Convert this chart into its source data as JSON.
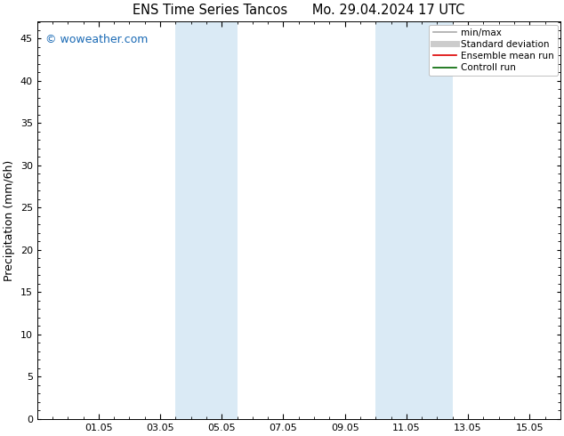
{
  "title": "ENS Time Series Tancos      Mo. 29.04.2024 17 UTC",
  "ylabel": "Precipitation (mm/6h)",
  "ylim": [
    0,
    47
  ],
  "yticks": [
    0,
    5,
    10,
    15,
    20,
    25,
    30,
    35,
    40,
    45
  ],
  "xtick_labels": [
    "01.05",
    "03.05",
    "05.05",
    "07.05",
    "09.05",
    "11.05",
    "13.05",
    "15.05"
  ],
  "xtick_positions": [
    2.0,
    4.0,
    6.0,
    8.0,
    10.0,
    12.0,
    14.0,
    16.0
  ],
  "xlim": [
    0,
    17.0
  ],
  "shaded_regions": [
    {
      "x_start": 4.5,
      "x_end": 6.5
    },
    {
      "x_start": 11.0,
      "x_end": 13.5
    }
  ],
  "shade_color": "#daeaf5",
  "background_color": "#ffffff",
  "watermark_text": "© woweather.com",
  "watermark_color": "#1a6ab5",
  "legend_items": [
    {
      "label": "min/max",
      "color": "#aaaaaa",
      "lw": 1.2
    },
    {
      "label": "Standard deviation",
      "color": "#cccccc",
      "lw": 5
    },
    {
      "label": "Ensemble mean run",
      "color": "#dd0000",
      "lw": 1.2
    },
    {
      "label": "Controll run",
      "color": "#006600",
      "lw": 1.2
    }
  ],
  "title_fontsize": 10.5,
  "ylabel_fontsize": 9,
  "tick_fontsize": 8,
  "watermark_fontsize": 9,
  "legend_fontsize": 7.5
}
